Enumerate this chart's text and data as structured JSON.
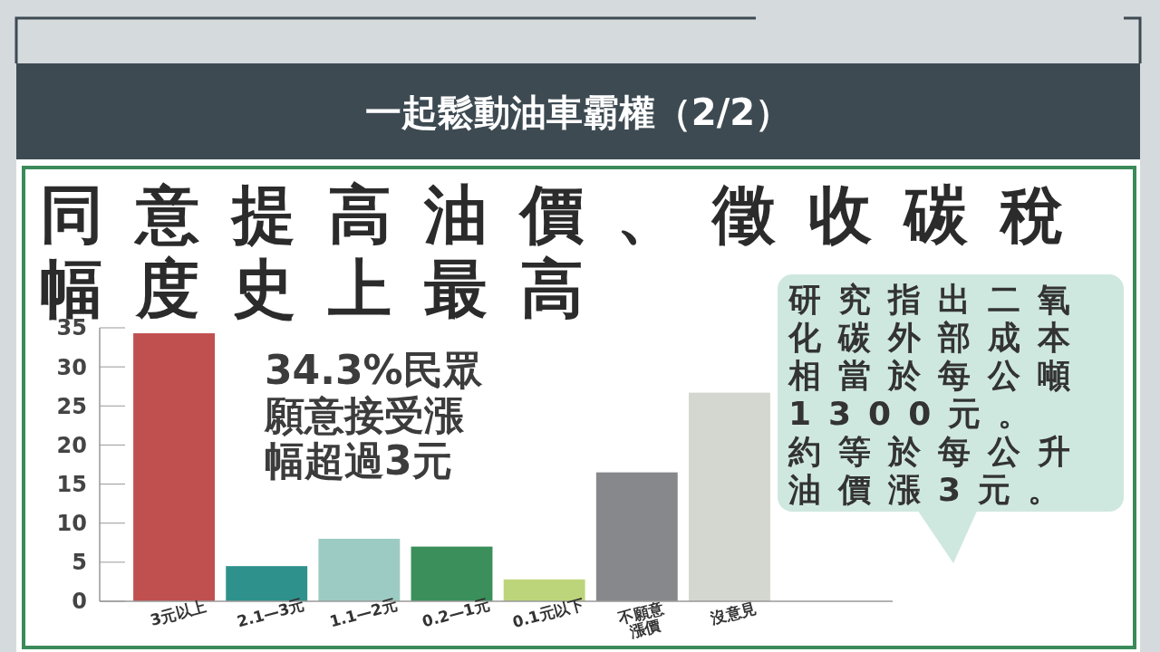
{
  "chart_data": {
    "type": "bar",
    "title": "一起鬆動油車霸權（2/2）",
    "subtitle": "同意提高油價、徵收碳稅幅度史上最高",
    "categories": [
      "3元以上",
      "2.1—3元",
      "1.1—2元",
      "0.2—1元",
      "0.1元以下",
      "不願意\n漲價",
      "沒意見"
    ],
    "values": [
      34.3,
      4.5,
      8.0,
      7.0,
      2.8,
      16.5,
      26.7
    ],
    "colors": [
      "#c0504f",
      "#2e918c",
      "#9ccbc3",
      "#3a8f5b",
      "#bdd57a",
      "#87888c",
      "#d3d7d0"
    ],
    "ylim": [
      0,
      35
    ],
    "yticks": [
      0,
      5,
      10,
      15,
      20,
      25,
      30,
      35
    ],
    "grid": false,
    "annotations": [
      "34.3%民眾願意接受漲幅超過3元",
      "研究指出二氧化碳外部成本相當於每公噸1300元。",
      "約等於每公升油價漲3元。"
    ]
  }
}
